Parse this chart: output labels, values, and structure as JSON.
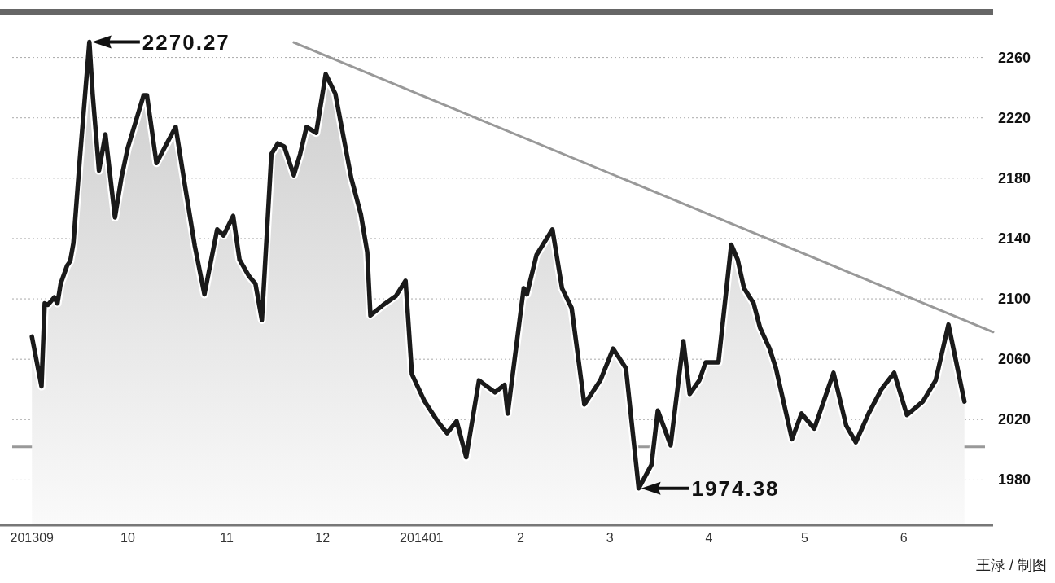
{
  "chart_data": {
    "type": "area",
    "xlim": [
      "2013-08-22",
      "2014-06-29"
    ],
    "ylim": [
      1950,
      2290
    ],
    "yticks": [
      1980,
      2020,
      2060,
      2100,
      2140,
      2180,
      2220,
      2260
    ],
    "xticks": [
      {
        "value": "2013-09-01",
        "label": "201309"
      },
      {
        "value": "2013-10-01",
        "label": "10"
      },
      {
        "value": "2013-11-01",
        "label": "11"
      },
      {
        "value": "2013-12-01",
        "label": "12"
      },
      {
        "value": "2014-01-01",
        "label": "201401"
      },
      {
        "value": "2014-02-01",
        "label": "2"
      },
      {
        "value": "2014-03-01",
        "label": "3"
      },
      {
        "value": "2014-04-01",
        "label": "4"
      },
      {
        "value": "2014-05-01",
        "label": "5"
      },
      {
        "value": "2014-06-01",
        "label": "6"
      }
    ],
    "grid": "y",
    "line_style": "solid",
    "series": [
      {
        "color": "#1a1a1a",
        "x": [
          "2013-09-01",
          "2013-09-04",
          "2013-09-05",
          "2013-09-06",
          "2013-09-08",
          "2013-09-09",
          "2013-09-10",
          "2013-09-12",
          "2013-09-13",
          "2013-09-14",
          "2013-09-16",
          "2013-09-19",
          "2013-09-20",
          "2013-09-22",
          "2013-09-24",
          "2013-09-27",
          "2013-09-29",
          "2013-10-01",
          "2013-10-06",
          "2013-10-07",
          "2013-10-10",
          "2013-10-16",
          "2013-10-19",
          "2013-10-22",
          "2013-10-25",
          "2013-10-29",
          "2013-10-31",
          "2013-11-03",
          "2013-11-05",
          "2013-11-08",
          "2013-11-10",
          "2013-11-12",
          "2013-11-15",
          "2013-11-17",
          "2013-11-19",
          "2013-11-22",
          "2013-11-24",
          "2013-11-26",
          "2013-11-29",
          "2013-12-02",
          "2013-12-05",
          "2013-12-10",
          "2013-12-13",
          "2013-12-15",
          "2013-12-16",
          "2013-12-20",
          "2013-12-24",
          "2013-12-27",
          "2013-12-29",
          "2014-01-02",
          "2014-01-06",
          "2014-01-09",
          "2014-01-12",
          "2014-01-15",
          "2014-01-19",
          "2014-01-24",
          "2014-01-27",
          "2014-01-28",
          "2014-02-02",
          "2014-02-03",
          "2014-02-06",
          "2014-02-11",
          "2014-02-14",
          "2014-02-17",
          "2014-02-21",
          "2014-02-26",
          "2014-03-02",
          "2014-03-06",
          "2014-03-10",
          "2014-03-14",
          "2014-03-16",
          "2014-03-20",
          "2014-03-24",
          "2014-03-26",
          "2014-03-29",
          "2014-03-31",
          "2014-04-04",
          "2014-04-08",
          "2014-04-10",
          "2014-04-12",
          "2014-04-15",
          "2014-04-17",
          "2014-04-20",
          "2014-04-22",
          "2014-04-27",
          "2014-04-30",
          "2014-05-04",
          "2014-05-10",
          "2014-05-14",
          "2014-05-17",
          "2014-05-21",
          "2014-05-25",
          "2014-05-29",
          "2014-06-02",
          "2014-06-07",
          "2014-06-11",
          "2014-06-15",
          "2014-06-20"
        ],
        "values": [
          2075,
          2042,
          2097,
          2096,
          2101,
          2097,
          2110,
          2122,
          2125,
          2137,
          2193,
          2270.27,
          2236,
          2185,
          2209,
          2154,
          2180,
          2200,
          2235,
          2235,
          2190,
          2214,
          2174,
          2135,
          2103,
          2146,
          2142,
          2155,
          2126,
          2115,
          2110,
          2086,
          2196,
          2203,
          2201,
          2182,
          2196,
          2214,
          2210,
          2249,
          2236,
          2180,
          2156,
          2131,
          2089,
          2096,
          2102,
          2112,
          2050,
          2032,
          2019,
          2011,
          2019,
          1995,
          2046,
          2038,
          2043,
          2024,
          2107,
          2103,
          2129,
          2146,
          2107,
          2094,
          2030,
          2046,
          2067,
          2054,
          1974.38,
          1990,
          2026,
          2003,
          2072,
          2037,
          2046,
          2058,
          2058,
          2136,
          2126,
          2107,
          2097,
          2081,
          2067,
          2054,
          2007,
          2024,
          2014,
          2051,
          2016,
          2005,
          2024,
          2040,
          2051,
          2023,
          2032,
          2046,
          2083,
          2032
        ]
      },
      {
        "type": "line",
        "color": "#999999",
        "x": [
          "2013-11-22",
          "2014-06-29"
        ],
        "values": [
          2270,
          2078
        ]
      }
    ],
    "ref_lines": [
      {
        "axis": "y",
        "value": 2002,
        "color": "#999999"
      }
    ],
    "annotations": [
      {
        "text": "2270.27",
        "x": "2013-09-19",
        "y": 2270.27
      },
      {
        "text": "1974.38",
        "x": "2014-03-10",
        "y": 1974.38
      },
      "王渌 / 制图"
    ]
  }
}
